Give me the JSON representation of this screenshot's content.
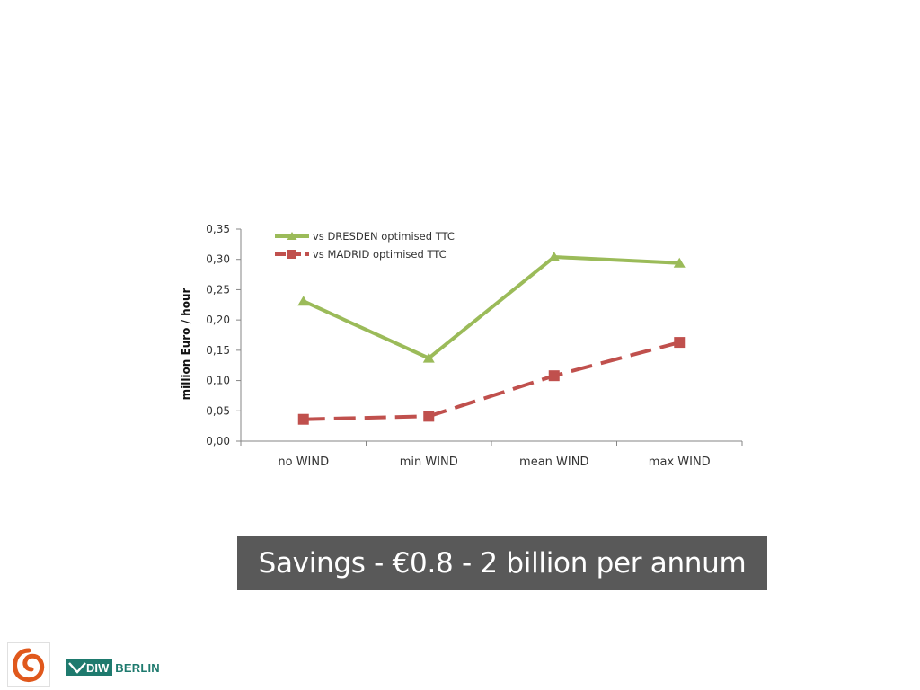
{
  "chart_data": {
    "type": "line",
    "categories": [
      "no WIND",
      "min WIND",
      "mean WIND",
      "max WIND"
    ],
    "ylabel": "million Euro / hour",
    "ylim": [
      0,
      0.35
    ],
    "ytick_labels": [
      "0,00",
      "0,05",
      "0,10",
      "0,15",
      "0,20",
      "0,25",
      "0,30",
      "0,35"
    ],
    "grid": false,
    "legend_position": "top-left",
    "series": [
      {
        "name": "vs DRESDEN optimised TTC",
        "values": [
          0.231,
          0.137,
          0.304,
          0.294
        ],
        "color": "#9bbb59",
        "marker": "triangle",
        "dash": "solid"
      },
      {
        "name": "vs MADRID optimised TTC",
        "values": [
          0.036,
          0.041,
          0.108,
          0.163
        ],
        "color": "#c0504d",
        "marker": "square",
        "dash": "dashed"
      }
    ]
  },
  "banner": {
    "text": "Savings - €0.8 - 2 billion per annum"
  },
  "footer": {
    "logo_left_icon": "spiral-logo-icon",
    "diw_label": "DIW",
    "berlin_label": "BERLIN"
  }
}
